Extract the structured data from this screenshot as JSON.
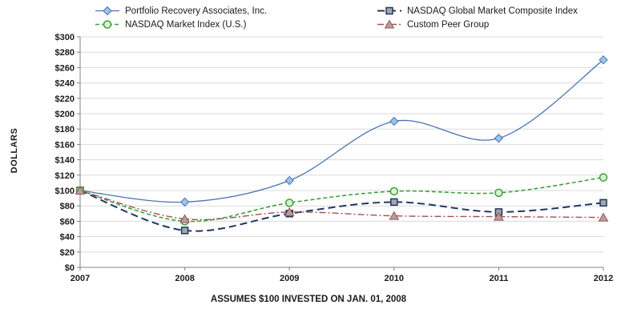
{
  "chart_data": {
    "type": "line",
    "xlabel": "ASSUMES $100 INVESTED ON JAN. 01, 2008",
    "ylabel": "DOLLARS",
    "x": [
      "2007",
      "2008",
      "2009",
      "2010",
      "2011",
      "2012"
    ],
    "ylim": [
      0,
      300
    ],
    "ytick_step": 20,
    "y_tick_prefix": "$",
    "grid": true,
    "legend_position": "top",
    "series": [
      {
        "name": "Portfolio Recovery Associates, Inc.",
        "values": [
          100,
          85,
          113,
          190,
          168,
          270
        ],
        "color": "#4a73b2",
        "marker": "diamond",
        "marker_fill": "#9dc3e6",
        "dash": "solid",
        "width": 1.3
      },
      {
        "name": "NASDAQ Global Market Composite Index",
        "values": [
          100,
          48,
          70,
          85,
          72,
          84
        ],
        "color": "#1f3864",
        "marker": "square",
        "marker_fill": "#a6a6a6",
        "dash": "9,5",
        "width": 2
      },
      {
        "name": "NASDAQ Market Index (U.S.)",
        "values": [
          100,
          60,
          84,
          99,
          97,
          117
        ],
        "color": "#3da03d",
        "marker": "circle",
        "marker_fill": "#d9f2d0",
        "dash": "5,3",
        "width": 1.6
      },
      {
        "name": "Custom Peer Group",
        "values": [
          100,
          63,
          72,
          67,
          66,
          65
        ],
        "color": "#a05252",
        "marker": "triangle",
        "marker_fill": "#b3a0a0",
        "dash": "8,3,2,3",
        "width": 1.4
      }
    ]
  }
}
